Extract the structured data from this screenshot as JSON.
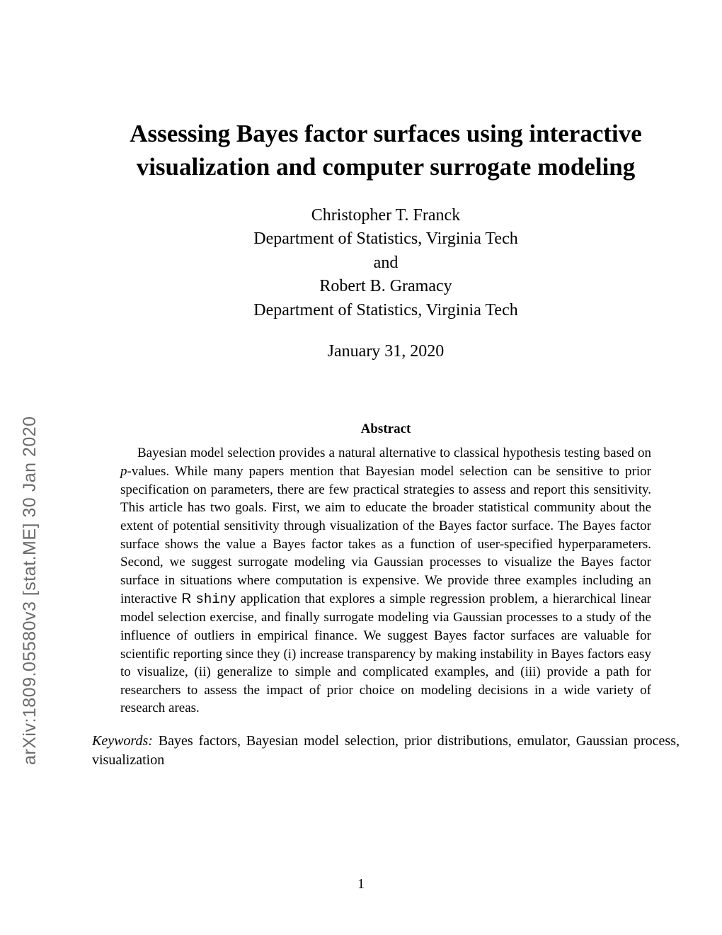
{
  "arxiv": {
    "id": "arXiv:1809.05580v3",
    "category": "[stat.ME]",
    "date": "30 Jan 2020",
    "color": "#6b6b6b",
    "fontsize": 25
  },
  "title": "Assessing Bayes factor surfaces using interactive visualization and computer surrogate modeling",
  "authors": {
    "line1": "Christopher T. Franck",
    "line2": "Department of Statistics, Virginia Tech",
    "line3": "and",
    "line4": "Robert B. Gramacy",
    "line5": "Department of Statistics, Virginia Tech"
  },
  "date": "January 31, 2020",
  "abstract": {
    "heading": "Abstract",
    "part1": "Bayesian model selection provides a natural alternative to classical hypothesis testing based on ",
    "p_letter": "p",
    "part2": "-values. While many papers mention that Bayesian model selection can be sensitive to prior specification on parameters, there are few practical strategies to assess and report this sensitivity. This article has two goals. First, we aim to educate the broader statistical community about the extent of potential sensitivity through visualization of the Bayes factor surface. The Bayes factor surface shows the value a Bayes factor takes as a function of user-specified hyperparameters. Second, we suggest surrogate modeling via Gaussian processes to visualize the Bayes factor surface in situations where computation is expensive. We provide three examples including an interactive ",
    "r_letter": "R",
    "shiny_word": "shiny",
    "part3": " application that explores a simple regression problem, a hierarchical linear model selection exercise, and finally surrogate modeling via Gaussian processes to a study of the influence of outliers in empirical finance. We suggest Bayes factor surfaces are valuable for scientific reporting since they (i) increase transparency by making instability in Bayes factors easy to visualize, (ii) generalize to simple and complicated examples, and (iii) provide a path for researchers to assess the impact of prior choice on modeling decisions in a wide variety of research areas."
  },
  "keywords": {
    "label": "Keywords:",
    "text": " Bayes factors, Bayesian model selection, prior distributions, emulator, Gaussian process, visualization"
  },
  "page_number": "1",
  "styling": {
    "background_color": "#ffffff",
    "text_color": "#000000",
    "title_fontsize": 35,
    "author_fontsize": 24,
    "abstract_fontsize": 19,
    "body_fontsize": 20,
    "font_family": "Times New Roman"
  }
}
